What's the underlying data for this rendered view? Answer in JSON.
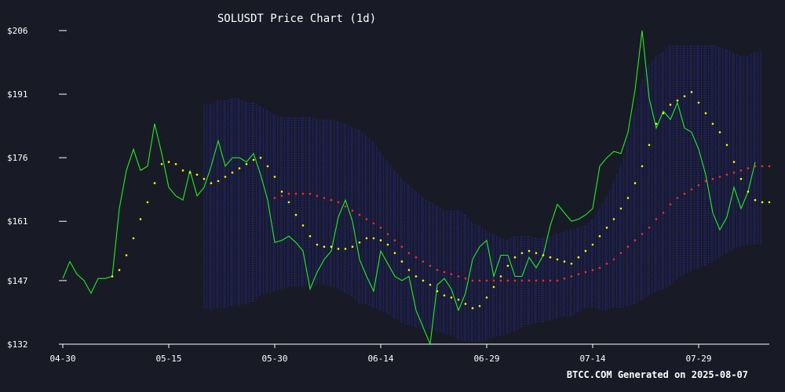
{
  "chart_data": {
    "type": "line",
    "title": "SOLUSDT Price Chart (1d)",
    "footer": "BTCC.COM Generated on 2025-08-07",
    "xlabel": "",
    "ylabel": "",
    "ylim": [
      132,
      206
    ],
    "y_ticks": [
      "$206",
      "$191",
      "$176",
      "$161",
      "$147",
      "$132"
    ],
    "y_tick_values": [
      206,
      191,
      176,
      161,
      147,
      132
    ],
    "x_ticks": [
      "04-30",
      "05-15",
      "05-30",
      "06-14",
      "06-29",
      "07-14",
      "07-29"
    ],
    "x_tick_days": [
      0,
      15,
      30,
      45,
      60,
      75,
      90
    ],
    "x_range_days": [
      0,
      100
    ],
    "colors": {
      "background": "#181b25",
      "price": "#22ee22",
      "fast_ma": "#ffff00",
      "slow_ma": "#ff2a2a",
      "band": "#2a2ab4",
      "axis": "#ffffff"
    },
    "series": [
      {
        "name": "",
        "style": "price-line",
        "start_day": 0,
        "values": [
          147.5,
          151.5,
          148.5,
          147,
          144,
          147.5,
          147.5,
          148,
          164,
          173,
          178,
          173,
          174,
          184,
          177,
          169,
          167,
          166,
          173,
          167,
          169,
          174,
          180,
          174,
          176,
          176,
          175,
          177,
          172,
          166,
          156,
          156.5,
          157.5,
          156,
          154,
          145,
          149,
          152,
          154,
          162,
          166,
          161,
          152,
          148,
          144.5,
          154,
          151,
          148,
          147,
          148,
          140,
          136,
          132,
          146,
          147.5,
          145,
          140,
          144,
          152,
          155,
          156.5,
          148,
          153,
          153,
          148,
          148,
          152.5,
          150,
          153,
          160,
          165,
          163,
          161,
          161.5,
          162.5,
          164,
          174,
          176,
          177.5,
          177,
          182,
          192,
          206,
          190,
          183,
          187,
          185,
          189,
          183,
          182,
          178,
          172,
          163,
          159,
          162,
          169,
          164,
          168,
          175
        ]
      },
      {
        "name": "",
        "style": "dotted",
        "start_day": 7,
        "values": [
          148,
          149.5,
          153,
          157,
          161.5,
          165.5,
          170,
          174.5,
          175,
          174.5,
          173,
          172.5,
          172,
          171,
          170,
          170.5,
          171.5,
          172.5,
          173.5,
          174.5,
          175.5,
          176,
          174,
          171.5,
          168,
          165.5,
          162.5,
          160,
          157.5,
          155.5,
          155,
          155,
          154.5,
          154.5,
          155,
          156,
          157,
          157,
          156.5,
          155.5,
          153.5,
          151.5,
          149.5,
          148,
          147,
          146,
          144.5,
          143.5,
          143,
          142.5,
          141.5,
          140.5,
          141,
          143,
          145.5,
          148,
          150.5,
          152.5,
          153.5,
          154,
          153.5,
          153,
          152.5,
          152,
          151.5,
          151,
          152.5,
          154,
          155.5,
          157.5,
          159.5,
          161.5,
          164,
          166.5,
          170,
          174,
          179,
          184,
          186.5,
          188.5,
          189.5,
          190.5,
          191.5,
          189,
          186.5,
          184,
          182,
          179,
          175,
          171,
          168,
          166,
          165.5,
          165.5
        ]
      },
      {
        "name": "",
        "style": "dotted",
        "start_day": 30,
        "values": [
          166.5,
          167,
          167.5,
          167.5,
          167.5,
          167.5,
          167,
          166.5,
          166,
          165.5,
          164.5,
          163.5,
          162.5,
          161.5,
          160.5,
          159.5,
          158,
          156.5,
          155,
          153.5,
          152.5,
          151.5,
          150.5,
          149.5,
          149,
          148.5,
          148,
          147.5,
          147,
          147,
          147,
          147,
          147,
          147,
          147,
          147,
          147,
          147,
          147,
          147,
          147,
          147.5,
          148,
          148.5,
          149,
          149.5,
          150,
          151,
          152,
          153.5,
          155,
          156.5,
          158,
          159.5,
          161.5,
          163,
          165,
          166.5,
          167.5,
          168.5,
          169.5,
          170.5,
          171,
          171.5,
          172,
          172.5,
          173,
          173.5,
          174,
          174,
          174
        ]
      }
    ],
    "bands": [
      {
        "name": "",
        "start_day": 20,
        "upper": [
          188.5,
          188.5,
          189.5,
          189.5,
          190,
          190,
          189,
          189,
          188,
          187,
          186,
          185.5,
          185.5,
          185.5,
          185.5,
          185.5,
          185,
          185,
          185,
          184.5,
          184,
          183,
          182.5,
          181,
          179.5,
          177,
          175,
          173,
          171,
          169.5,
          168,
          166.5,
          165.5,
          164.5,
          163.5,
          163.5,
          163.5,
          162.5,
          160.5,
          160,
          158.5,
          158,
          157,
          156.5,
          157.5,
          157.5,
          157.5,
          157,
          157,
          157.5,
          158,
          158.5,
          159,
          159.5,
          160,
          161.5,
          164,
          167,
          170.5,
          174.5,
          181,
          187.5,
          194.5,
          198,
          200,
          201,
          202.5,
          202.5,
          202.5,
          202.5,
          202.5,
          202.5,
          202.5,
          202,
          201.5,
          200.5,
          200,
          200,
          201,
          201
        ],
        "lower": [
          140.5,
          140,
          140.5,
          140.5,
          141,
          141,
          141.5,
          142,
          143.5,
          144,
          144.5,
          145,
          145.5,
          145.5,
          145.5,
          145.5,
          146,
          146,
          145.5,
          145,
          144,
          143,
          141.5,
          141.5,
          140.5,
          140,
          139,
          138,
          137,
          136.5,
          136,
          135.5,
          135.5,
          135,
          134.5,
          134,
          133,
          132.5,
          132.5,
          132.5,
          133,
          133.5,
          134,
          134.5,
          135,
          136,
          136.5,
          137,
          137,
          137.5,
          138,
          138.5,
          138.5,
          139.5,
          140.5,
          140.5,
          140,
          140,
          140.5,
          140.5,
          141,
          141.5,
          142.5,
          143.5,
          144.5,
          145,
          146,
          147.5,
          148.5,
          149.5,
          150,
          150.5,
          151.5,
          152.5,
          153.5,
          154.5,
          155,
          155.5,
          155.5,
          155.5
        ]
      }
    ]
  }
}
